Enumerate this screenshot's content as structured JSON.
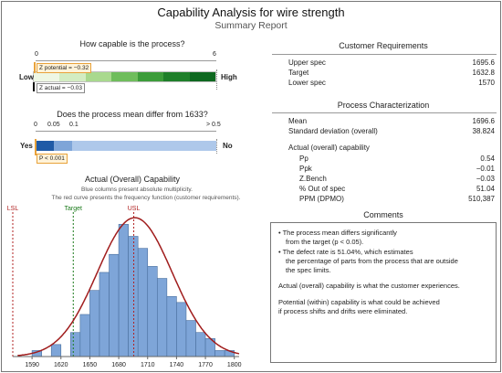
{
  "title": "Capability Analysis for wire strength",
  "subtitle": "Summary Report",
  "capable": {
    "heading": "How capable is the process?",
    "scale_min": "0",
    "scale_max": "6",
    "low_label": "Low",
    "high_label": "High",
    "z_potential": "Z potential = −0.32",
    "z_actual": "Z actual = −0.03"
  },
  "mean_diff": {
    "heading": "Does the process mean differ from 1633?",
    "ticks": [
      "0",
      "0.05",
      "0.1",
      "> 0.5"
    ],
    "yes_label": "Yes",
    "no_label": "No",
    "p_label": "P < 0.001"
  },
  "capability_chart": {
    "heading": "Actual (Overall) Capability",
    "note1": "Blue columns present absolute multiplicity.",
    "note2": "The red curve presents the frequency function (customer requirements).",
    "lsl_label": "LSL",
    "target_label": "Target",
    "usl_label": "USL",
    "x_ticks": [
      "1590",
      "1620",
      "1650",
      "1680",
      "1710",
      "1740",
      "1770",
      "1800"
    ]
  },
  "customer_requirements": {
    "heading": "Customer Requirements",
    "rows": [
      {
        "label": "Upper spec",
        "value": "1695.6"
      },
      {
        "label": "Target",
        "value": "1632.8"
      },
      {
        "label": "Lower spec",
        "value": "1570"
      }
    ]
  },
  "process_characterization": {
    "heading": "Process Characterization",
    "rows": [
      {
        "label": "Mean",
        "value": "1696.6"
      },
      {
        "label": "Standard deviation (overall)",
        "value": "38.824"
      }
    ],
    "capability_heading": "Actual (overall) capability",
    "capability_rows": [
      {
        "label": "Pp",
        "value": "0.54"
      },
      {
        "label": "Ppk",
        "value": "−0.01"
      },
      {
        "label": "Z.Bench",
        "value": "−0.03"
      },
      {
        "label": "% Out of spec",
        "value": "51.04"
      },
      {
        "label": "PPM (DPMO)",
        "value": "510,387"
      }
    ]
  },
  "comments": {
    "heading": "Comments",
    "bullet1_a": "The process mean differs significantly",
    "bullet1_b": "from the target (p < 0.05).",
    "bullet2_a": "The defect rate is 51.04%, which estimates",
    "bullet2_b": "the percentage of parts from the process that are outside",
    "bullet2_c": "the spec limits.",
    "para1": "Actual (overall) capability is what the customer experiences.",
    "para2_a": "Potential (within) capability is what could be achieved",
    "para2_b": "if process shifts and drifts were eliminated."
  },
  "colors": {
    "bar_fill": "#7ea5d8",
    "curve": "#a01c1c",
    "lsl_usl_line": "#b02020",
    "target_line": "#1a7a1a",
    "pval_dark": "#1f5aa6",
    "pval_light": "#aec8ea"
  },
  "chart_data": {
    "type": "bar",
    "x_range": [
      1570,
      1805
    ],
    "bin_width": 10,
    "bin_starts": [
      1590,
      1600,
      1610,
      1620,
      1630,
      1640,
      1650,
      1660,
      1670,
      1680,
      1690,
      1700,
      1710,
      1720,
      1730,
      1740,
      1750,
      1760,
      1770,
      1780,
      1790
    ],
    "values": [
      1,
      0,
      2,
      0,
      4,
      7,
      11,
      14,
      17,
      22,
      20,
      18,
      15,
      13,
      10,
      9,
      6,
      4,
      3,
      1,
      1
    ],
    "lsl": 1570,
    "target": 1632.8,
    "usl": 1695.6,
    "mean": 1696.6,
    "sd": 38.824
  }
}
